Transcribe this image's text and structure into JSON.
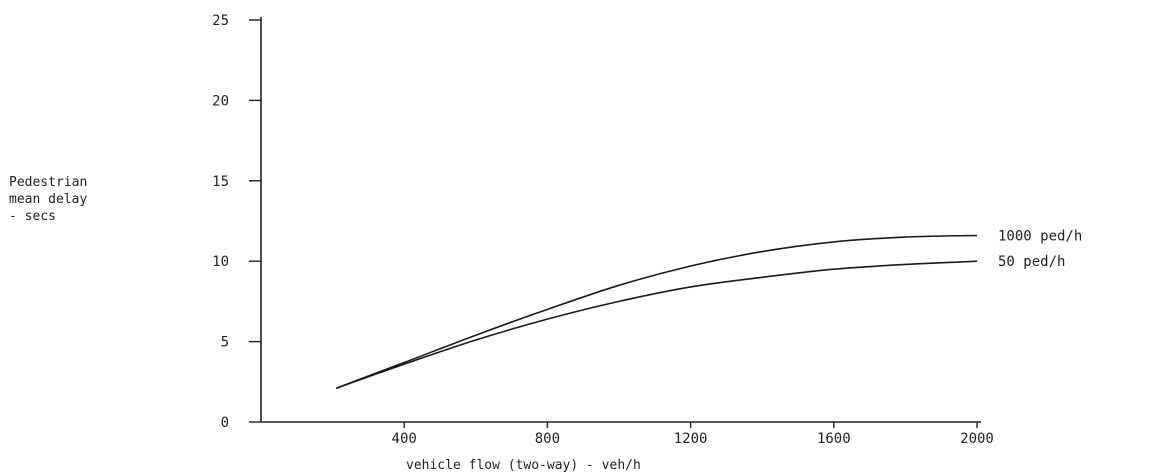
{
  "chart_data": {
    "type": "line",
    "title": "",
    "ylabel_lines": [
      "Pedestrian",
      "mean delay",
      "- secs"
    ],
    "xlabel": "vehicle flow (two-way) - veh/h",
    "xlim": [
      0,
      2000
    ],
    "ylim": [
      0,
      25
    ],
    "x_ticks": [
      400,
      800,
      1200,
      1600,
      2000
    ],
    "y_ticks": [
      0,
      5,
      10,
      15,
      20,
      25
    ],
    "grid": false,
    "series": [
      {
        "name": "1000 ped/h",
        "x": [
          210,
          400,
          600,
          800,
          1000,
          1200,
          1400,
          1600,
          1800,
          2000
        ],
        "y": [
          2.1,
          3.7,
          5.4,
          7.0,
          8.5,
          9.7,
          10.6,
          11.2,
          11.5,
          11.6
        ]
      },
      {
        "name": "50 ped/h",
        "x": [
          210,
          400,
          600,
          800,
          1000,
          1200,
          1400,
          1600,
          1800,
          2000
        ],
        "y": [
          2.1,
          3.6,
          5.1,
          6.4,
          7.5,
          8.4,
          9.0,
          9.5,
          9.8,
          10.0
        ]
      }
    ],
    "colors": {
      "line": "#1a1a1a",
      "axis": "#222222"
    }
  }
}
